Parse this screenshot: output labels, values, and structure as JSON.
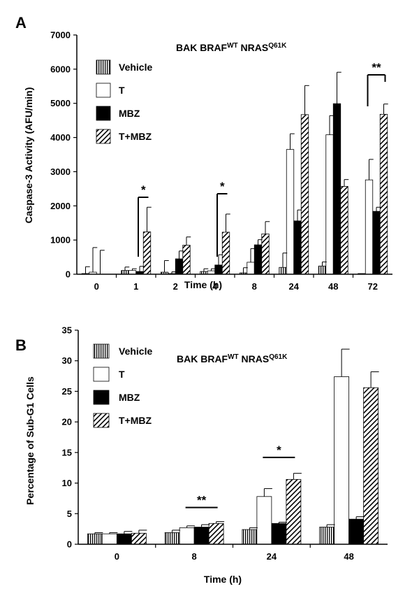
{
  "chart_data": [
    {
      "type": "bar",
      "panel_label": "A",
      "title_parts": [
        "BAK   BRAF",
        "WT",
        " NRAS",
        "Q61K"
      ],
      "xlabel": "Time (h)",
      "ylabel": "Caspase-3 Activity (AFU/min)",
      "ylim": [
        0,
        7000
      ],
      "yticks": [
        0,
        1000,
        2000,
        3000,
        4000,
        5000,
        6000,
        7000
      ],
      "categories": [
        "0",
        "1",
        "2",
        "4",
        "8",
        "24",
        "48",
        "72"
      ],
      "legend_position": "top-left",
      "series": [
        {
          "name": "Vehicle",
          "values": [
            20,
            110,
            60,
            80,
            40,
            200,
            240,
            20
          ],
          "errors": [
            200,
            100,
            340,
            80,
            150,
            420,
            120,
            0
          ]
        },
        {
          "name": "T",
          "values": [
            60,
            110,
            20,
            100,
            350,
            3650,
            4080,
            2760
          ],
          "errors": [
            720,
            50,
            50,
            60,
            400,
            460,
            560,
            600
          ]
        },
        {
          "name": "MBZ",
          "values": [
            0,
            80,
            450,
            270,
            860,
            1560,
            4990,
            1840
          ],
          "errors": [
            700,
            150,
            230,
            300,
            150,
            320,
            920,
            120
          ]
        },
        {
          "name": "T+MBZ",
          "values": [
            0,
            1240,
            850,
            1230,
            1180,
            4670,
            2570,
            4680
          ],
          "errors": [
            0,
            720,
            240,
            530,
            360,
            850,
            200,
            300
          ]
        }
      ],
      "significance": [
        {
          "category": "1",
          "label": "*"
        },
        {
          "category": "4",
          "label": "*"
        },
        {
          "category": "72",
          "label": "**"
        }
      ]
    },
    {
      "type": "bar",
      "panel_label": "B",
      "title_parts": [
        "BAK   BRAF",
        "WT",
        " NRAS",
        "Q61K"
      ],
      "xlabel": "Time (h)",
      "ylabel": "Percentage of Sub-G1 Cells",
      "ylim": [
        0,
        35
      ],
      "yticks": [
        0,
        5,
        10,
        15,
        20,
        25,
        30,
        35
      ],
      "categories": [
        "0",
        "8",
        "24",
        "48"
      ],
      "legend_position": "top-left",
      "series": [
        {
          "name": "Vehicle",
          "values": [
            1.7,
            1.9,
            2.4,
            2.8
          ],
          "errors": [
            0.2,
            0.4,
            0.3,
            0.4
          ]
        },
        {
          "name": "T",
          "values": [
            1.7,
            2.7,
            7.8,
            27.4
          ],
          "errors": [
            0.2,
            0.3,
            1.3,
            4.5
          ]
        },
        {
          "name": "MBZ",
          "values": [
            1.7,
            2.8,
            3.4,
            4.1
          ],
          "errors": [
            0.4,
            0.4,
            0.2,
            0.4
          ]
        },
        {
          "name": "T+MBZ",
          "values": [
            1.8,
            3.4,
            10.6,
            25.6
          ],
          "errors": [
            0.5,
            0.3,
            1.0,
            2.6
          ]
        }
      ],
      "significance": [
        {
          "category": "8",
          "label": "**"
        },
        {
          "category": "24",
          "label": "*"
        }
      ]
    }
  ]
}
